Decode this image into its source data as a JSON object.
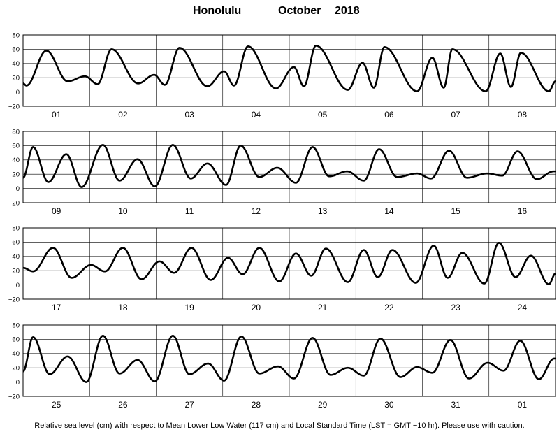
{
  "chart_data": {
    "type": "line",
    "title_location": "Honolulu",
    "title_month": "October",
    "title_year": "2018",
    "caption": "Relative sea level (cm) with respect to Mean Lower Low Water (117 cm) and Local Standard Time (LST = GMT −10 hr). Please use with caution.",
    "ylim": [
      -20,
      80
    ],
    "yticks": [
      "80",
      "60",
      "40",
      "20",
      "0",
      "−20"
    ],
    "grid": true,
    "panels": [
      {
        "days": [
          "01",
          "02",
          "03",
          "04",
          "05",
          "06",
          "07",
          "08"
        ],
        "highs": [
          {
            "day": 0.35,
            "value": 58
          },
          {
            "day": 0.93,
            "value": 22
          },
          {
            "day": 1.33,
            "value": 60
          },
          {
            "day": 1.97,
            "value": 24
          },
          {
            "day": 2.35,
            "value": 62
          },
          {
            "day": 3.02,
            "value": 29
          },
          {
            "day": 3.38,
            "value": 64
          },
          {
            "day": 4.07,
            "value": 35
          },
          {
            "day": 4.4,
            "value": 65
          },
          {
            "day": 5.1,
            "value": 41
          },
          {
            "day": 5.43,
            "value": 63
          },
          {
            "day": 6.15,
            "value": 48
          },
          {
            "day": 6.45,
            "value": 60
          },
          {
            "day": 7.17,
            "value": 54
          },
          {
            "day": 7.48,
            "value": 55
          }
        ],
        "lows": [
          {
            "day": 0.05,
            "value": 9
          },
          {
            "day": 0.67,
            "value": 15
          },
          {
            "day": 1.12,
            "value": 11
          },
          {
            "day": 1.73,
            "value": 12
          },
          {
            "day": 2.13,
            "value": 10
          },
          {
            "day": 2.77,
            "value": 8
          },
          {
            "day": 3.17,
            "value": 9
          },
          {
            "day": 3.8,
            "value": 5
          },
          {
            "day": 4.22,
            "value": 8
          },
          {
            "day": 4.88,
            "value": 3
          },
          {
            "day": 5.27,
            "value": 6
          },
          {
            "day": 5.92,
            "value": 1
          },
          {
            "day": 6.32,
            "value": 6
          },
          {
            "day": 6.95,
            "value": 1
          },
          {
            "day": 7.33,
            "value": 7
          },
          {
            "day": 7.9,
            "value": 1
          }
        ],
        "start_value": 12,
        "end_value": 15
      },
      {
        "days": [
          "09",
          "10",
          "11",
          "12",
          "13",
          "14",
          "15",
          "16"
        ],
        "highs": [
          {
            "day": 0.15,
            "value": 58
          },
          {
            "day": 0.65,
            "value": 48
          },
          {
            "day": 1.2,
            "value": 61
          },
          {
            "day": 1.72,
            "value": 41
          },
          {
            "day": 2.25,
            "value": 61
          },
          {
            "day": 2.77,
            "value": 35
          },
          {
            "day": 3.27,
            "value": 60
          },
          {
            "day": 3.82,
            "value": 29
          },
          {
            "day": 4.35,
            "value": 58
          },
          {
            "day": 4.87,
            "value": 24
          },
          {
            "day": 5.35,
            "value": 55
          },
          {
            "day": 5.92,
            "value": 21
          },
          {
            "day": 6.4,
            "value": 53
          },
          {
            "day": 6.97,
            "value": 21
          },
          {
            "day": 7.43,
            "value": 52
          },
          {
            "day": 7.97,
            "value": 24
          }
        ],
        "lows": [
          {
            "day": 0.38,
            "value": 9
          },
          {
            "day": 0.88,
            "value": 2
          },
          {
            "day": 1.45,
            "value": 11
          },
          {
            "day": 1.98,
            "value": 3
          },
          {
            "day": 2.52,
            "value": 14
          },
          {
            "day": 3.05,
            "value": 5
          },
          {
            "day": 3.55,
            "value": 16
          },
          {
            "day": 4.1,
            "value": 8
          },
          {
            "day": 4.6,
            "value": 17
          },
          {
            "day": 5.12,
            "value": 11
          },
          {
            "day": 5.62,
            "value": 16
          },
          {
            "day": 6.13,
            "value": 14
          },
          {
            "day": 6.67,
            "value": 15
          },
          {
            "day": 7.2,
            "value": 18
          },
          {
            "day": 7.72,
            "value": 13
          }
        ],
        "start_value": 15,
        "end_value": 24
      },
      {
        "days": [
          "17",
          "18",
          "19",
          "20",
          "21",
          "22",
          "23",
          "24"
        ],
        "highs": [
          {
            "day": 0.45,
            "value": 52
          },
          {
            "day": 1.02,
            "value": 28
          },
          {
            "day": 1.5,
            "value": 52
          },
          {
            "day": 2.05,
            "value": 33
          },
          {
            "day": 2.53,
            "value": 52
          },
          {
            "day": 3.08,
            "value": 38
          },
          {
            "day": 3.55,
            "value": 52
          },
          {
            "day": 4.1,
            "value": 44
          },
          {
            "day": 4.55,
            "value": 51
          },
          {
            "day": 5.12,
            "value": 49
          },
          {
            "day": 5.55,
            "value": 49
          },
          {
            "day": 6.17,
            "value": 55
          },
          {
            "day": 6.6,
            "value": 45
          },
          {
            "day": 7.15,
            "value": 59
          },
          {
            "day": 7.63,
            "value": 41
          }
        ],
        "lows": [
          {
            "day": 0.15,
            "value": 19
          },
          {
            "day": 0.73,
            "value": 10
          },
          {
            "day": 1.23,
            "value": 19
          },
          {
            "day": 1.78,
            "value": 8
          },
          {
            "day": 2.27,
            "value": 17
          },
          {
            "day": 2.82,
            "value": 7
          },
          {
            "day": 3.3,
            "value": 15
          },
          {
            "day": 3.85,
            "value": 5
          },
          {
            "day": 4.33,
            "value": 13
          },
          {
            "day": 4.88,
            "value": 4
          },
          {
            "day": 5.33,
            "value": 11
          },
          {
            "day": 5.9,
            "value": 3
          },
          {
            "day": 6.38,
            "value": 10
          },
          {
            "day": 6.93,
            "value": 2
          },
          {
            "day": 7.4,
            "value": 11
          },
          {
            "day": 7.9,
            "value": 1
          }
        ],
        "start_value": 24,
        "end_value": 16
      },
      {
        "days": [
          "25",
          "26",
          "27",
          "28",
          "29",
          "30",
          "31",
          "01"
        ],
        "highs": [
          {
            "day": 0.15,
            "value": 63
          },
          {
            "day": 0.67,
            "value": 36
          },
          {
            "day": 1.2,
            "value": 65
          },
          {
            "day": 1.72,
            "value": 31
          },
          {
            "day": 2.25,
            "value": 65
          },
          {
            "day": 2.78,
            "value": 26
          },
          {
            "day": 3.28,
            "value": 64
          },
          {
            "day": 3.83,
            "value": 22
          },
          {
            "day": 4.35,
            "value": 62
          },
          {
            "day": 4.88,
            "value": 20
          },
          {
            "day": 5.37,
            "value": 61
          },
          {
            "day": 5.92,
            "value": 21
          },
          {
            "day": 6.42,
            "value": 59
          },
          {
            "day": 6.98,
            "value": 27
          },
          {
            "day": 7.47,
            "value": 58
          },
          {
            "day": 7.98,
            "value": 33
          }
        ],
        "lows": [
          {
            "day": 0.4,
            "value": 11
          },
          {
            "day": 0.95,
            "value": 0
          },
          {
            "day": 1.45,
            "value": 12
          },
          {
            "day": 1.98,
            "value": 1
          },
          {
            "day": 2.5,
            "value": 11
          },
          {
            "day": 3.02,
            "value": 2
          },
          {
            "day": 3.55,
            "value": 12
          },
          {
            "day": 4.07,
            "value": 5
          },
          {
            "day": 4.62,
            "value": 10
          },
          {
            "day": 5.12,
            "value": 9
          },
          {
            "day": 5.67,
            "value": 7
          },
          {
            "day": 6.15,
            "value": 13
          },
          {
            "day": 6.7,
            "value": 5
          },
          {
            "day": 7.22,
            "value": 16
          },
          {
            "day": 7.75,
            "value": 4
          }
        ],
        "start_value": 15,
        "end_value": 33
      }
    ]
  }
}
